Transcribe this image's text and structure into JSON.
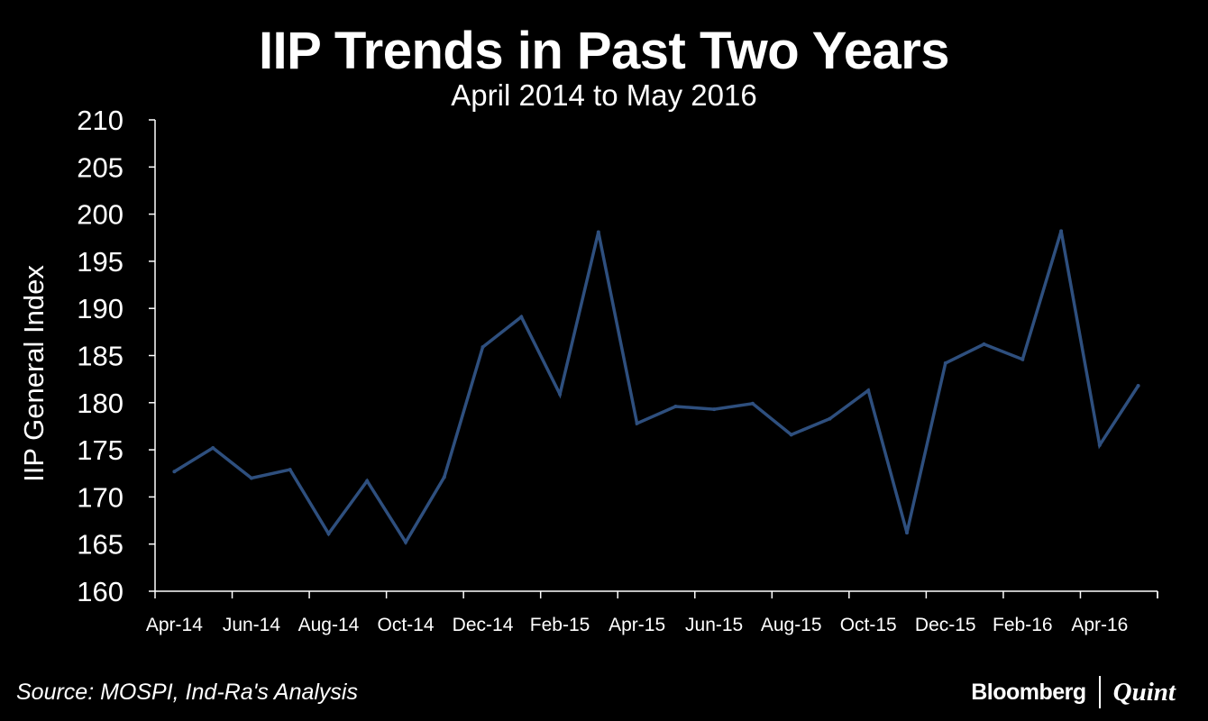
{
  "chart_data": {
    "type": "line",
    "title": "IIP Trends in Past Two Years",
    "subtitle": "April 2014 to May 2016",
    "ylabel": "IIP General Index",
    "xlabel": "",
    "ylim": [
      160,
      210
    ],
    "y_ticks": [
      160,
      165,
      170,
      175,
      180,
      185,
      190,
      195,
      200,
      205,
      210
    ],
    "x_tick_labels": [
      "Apr-14",
      "Jun-14",
      "Aug-14",
      "Oct-14",
      "Dec-14",
      "Feb-15",
      "Apr-15",
      "Jun-15",
      "Aug-15",
      "Oct-15",
      "Dec-15",
      "Feb-16",
      "Apr-16"
    ],
    "categories": [
      "Apr-14",
      "May-14",
      "Jun-14",
      "Jul-14",
      "Aug-14",
      "Sep-14",
      "Oct-14",
      "Nov-14",
      "Dec-14",
      "Jan-15",
      "Feb-15",
      "Mar-15",
      "Apr-15",
      "May-15",
      "Jun-15",
      "Jul-15",
      "Aug-15",
      "Sep-15",
      "Oct-15",
      "Nov-15",
      "Dec-15",
      "Jan-16",
      "Feb-16",
      "Mar-16",
      "Apr-16",
      "May-16"
    ],
    "series": [
      {
        "name": "IIP General Index",
        "color": "#2e4f7e",
        "values": [
          172.7,
          175.2,
          172.0,
          172.9,
          166.1,
          171.7,
          165.2,
          172.1,
          185.9,
          189.1,
          180.9,
          198.1,
          177.8,
          179.6,
          179.3,
          179.9,
          176.6,
          178.3,
          181.3,
          166.2,
          184.2,
          186.2,
          184.6,
          198.2,
          175.5,
          181.8
        ]
      }
    ],
    "grid": false
  },
  "footer": {
    "source": "Source: MOSPI, Ind-Ra's Analysis",
    "brand_left": "Bloomberg",
    "brand_right": "Quint"
  }
}
